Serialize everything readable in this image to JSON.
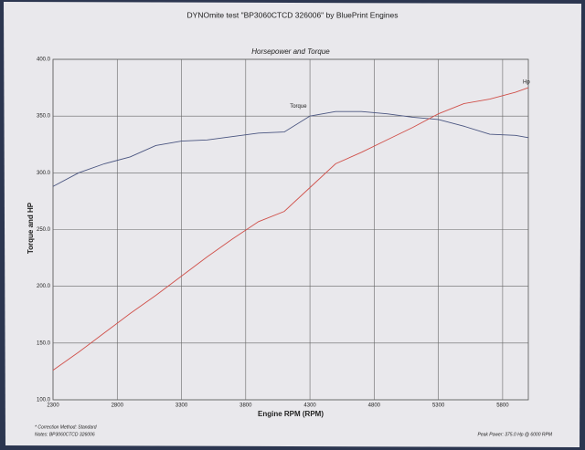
{
  "chart_data": {
    "type": "line",
    "title": "DYNOmite test \"BP3060CTCD 326006\" by BluePrint Engines",
    "subtitle": "Horsepower and Torque",
    "x_label": "Engine RPM (RPM)",
    "y_label": "Torque and HP",
    "x": [
      2300,
      2500,
      2700,
      2900,
      3100,
      3300,
      3500,
      3700,
      3900,
      4100,
      4300,
      4500,
      4700,
      4900,
      5100,
      5300,
      5500,
      5700,
      5900,
      6000
    ],
    "series": [
      {
        "name": "Torque",
        "color": "#4a5580",
        "values": [
          288,
          300,
          308,
          314,
          324,
          328,
          329,
          332,
          335,
          336,
          350,
          354,
          354,
          352,
          349,
          347,
          341,
          334,
          333,
          331
        ]
      },
      {
        "name": "Hp",
        "color": "#d0504a",
        "values": [
          126,
          142,
          159,
          176,
          192,
          209,
          226,
          242,
          257,
          266,
          287,
          308,
          318,
          329,
          340,
          352,
          361,
          365,
          371,
          375
        ]
      }
    ],
    "xlim": [
      2300,
      6000
    ],
    "xticks": [
      2300,
      2800,
      3300,
      3800,
      4300,
      4800,
      5300,
      5800
    ],
    "ylim": [
      100,
      400
    ],
    "yticks": [
      {
        "value": 100,
        "label": "100.0"
      },
      {
        "value": 150,
        "label": "150.0"
      },
      {
        "value": 200,
        "label": "200.0"
      },
      {
        "value": 250,
        "label": "250.0"
      },
      {
        "value": 300,
        "label": "300.0"
      },
      {
        "value": 350,
        "label": "350.0"
      },
      {
        "value": 400,
        "label": "400.0"
      }
    ],
    "grid": true,
    "notes": [
      "* Correction Method: Standard",
      "Notes: BP3060CTCD 326006"
    ],
    "peak_note": "Peak Power: 375.0 Hp @ 6000 RPM"
  }
}
